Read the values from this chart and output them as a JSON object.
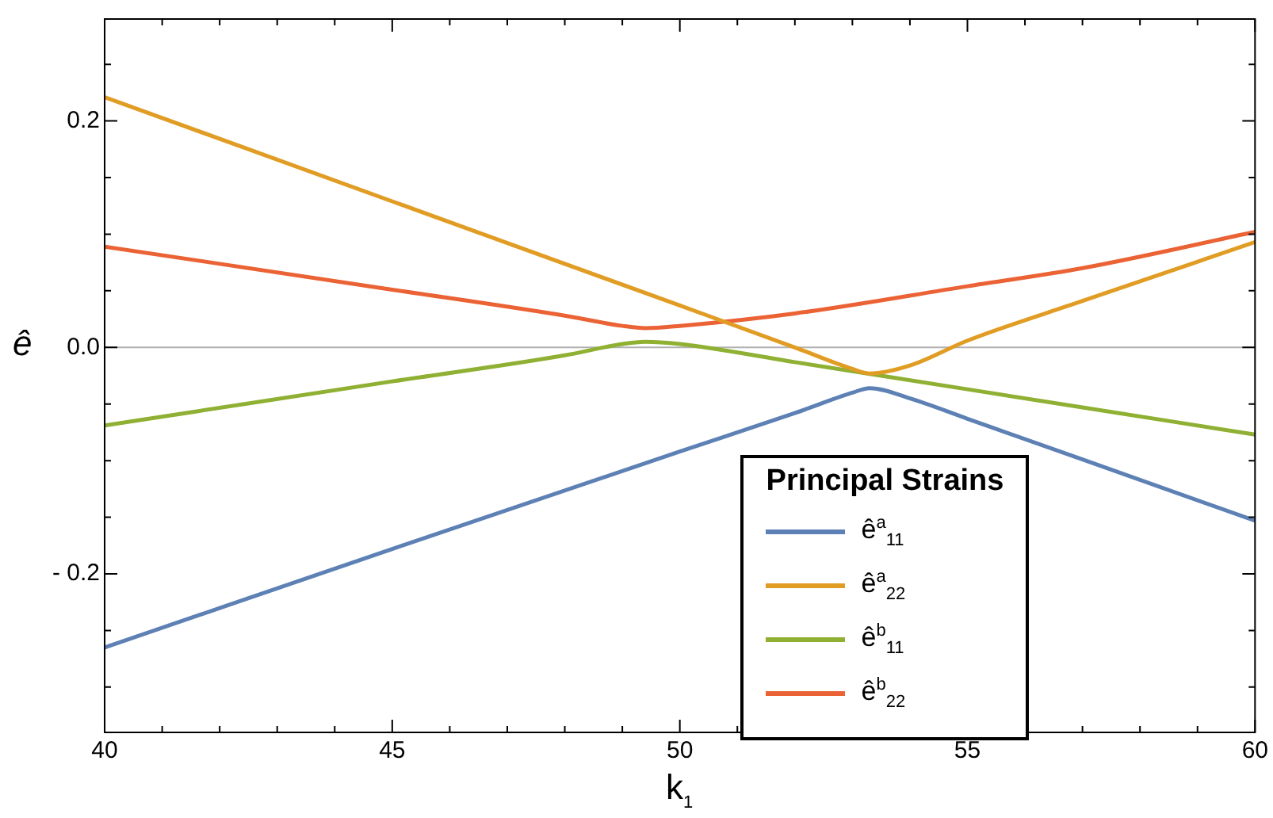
{
  "chart_data": {
    "type": "line",
    "xlabel": "k$_{1}$",
    "ylabel": "ê",
    "legend_title": "Principal Strains",
    "legend": "bottom right",
    "marker": "none",
    "line_style": "solid",
    "grid": false,
    "xlim": [
      40,
      60
    ],
    "ylim": [
      -0.34,
      0.29
    ],
    "xticks": [
      40,
      {
        "value": 41,
        "label": null
      },
      {
        "value": 42,
        "label": null
      },
      {
        "value": 43,
        "label": null
      },
      {
        "value": 44,
        "label": null
      },
      45,
      {
        "value": 46,
        "label": null
      },
      {
        "value": 47,
        "label": null
      },
      {
        "value": 48,
        "label": null
      },
      {
        "value": 49,
        "label": null
      },
      50,
      {
        "value": 51,
        "label": null
      },
      {
        "value": 52,
        "label": null
      },
      {
        "value": 53,
        "label": null
      },
      {
        "value": 54,
        "label": null
      },
      55,
      {
        "value": 56,
        "label": null
      },
      {
        "value": 57,
        "label": null
      },
      {
        "value": 58,
        "label": null
      },
      {
        "value": 59,
        "label": null
      },
      60
    ],
    "yticks": [
      {
        "value": -0.3,
        "label": null
      },
      {
        "value": -0.25,
        "label": null
      },
      {
        "value": -0.2,
        "label": "- 0.2"
      },
      {
        "value": -0.15,
        "label": null
      },
      {
        "value": -0.1,
        "label": null
      },
      {
        "value": -0.05,
        "label": null
      },
      {
        "value": 0,
        "label": "0.0"
      },
      {
        "value": 0.05,
        "label": null
      },
      {
        "value": 0.1,
        "label": null
      },
      {
        "value": 0.15,
        "label": null
      },
      0.2,
      {
        "value": 0.25,
        "label": null
      }
    ],
    "ref_lines": [
      {
        "axis": "y",
        "value": 0,
        "color": "#b0b0b0"
      }
    ],
    "series": [
      {
        "name": "ê$^{a}$$_{11}$",
        "color": "#5e81b5",
        "x": [
          40,
          45,
          50,
          52,
          53,
          53.3,
          54,
          55,
          57,
          60
        ],
        "values": [
          -0.265,
          -0.178,
          -0.092,
          -0.058,
          -0.04,
          -0.036,
          -0.045,
          -0.063,
          -0.099,
          -0.153
        ]
      },
      {
        "name": "ê$^{a}$$_{22}$",
        "color": "#e19c24",
        "x": [
          40,
          45,
          50,
          52,
          53,
          53.3,
          54,
          55,
          57,
          60
        ],
        "values": [
          0.221,
          0.129,
          0.037,
          0.0,
          -0.019,
          -0.023,
          -0.016,
          0.006,
          0.041,
          0.093
        ]
      },
      {
        "name": "ê$^{b}$$_{11}$",
        "color": "#8fb032",
        "x": [
          40,
          45,
          48,
          49,
          49.4,
          50,
          52,
          55,
          57,
          60
        ],
        "values": [
          -0.069,
          -0.03,
          -0.007,
          0.003,
          0.005,
          0.003,
          -0.013,
          -0.037,
          -0.053,
          -0.077
        ]
      },
      {
        "name": "ê$^{b}$$_{22}$",
        "color": "#eb6235",
        "x": [
          40,
          45,
          48,
          49,
          49.4,
          50,
          52,
          55,
          57,
          60
        ],
        "values": [
          0.089,
          0.051,
          0.028,
          0.019,
          0.017,
          0.019,
          0.03,
          0.054,
          0.07,
          0.102
        ]
      }
    ]
  }
}
